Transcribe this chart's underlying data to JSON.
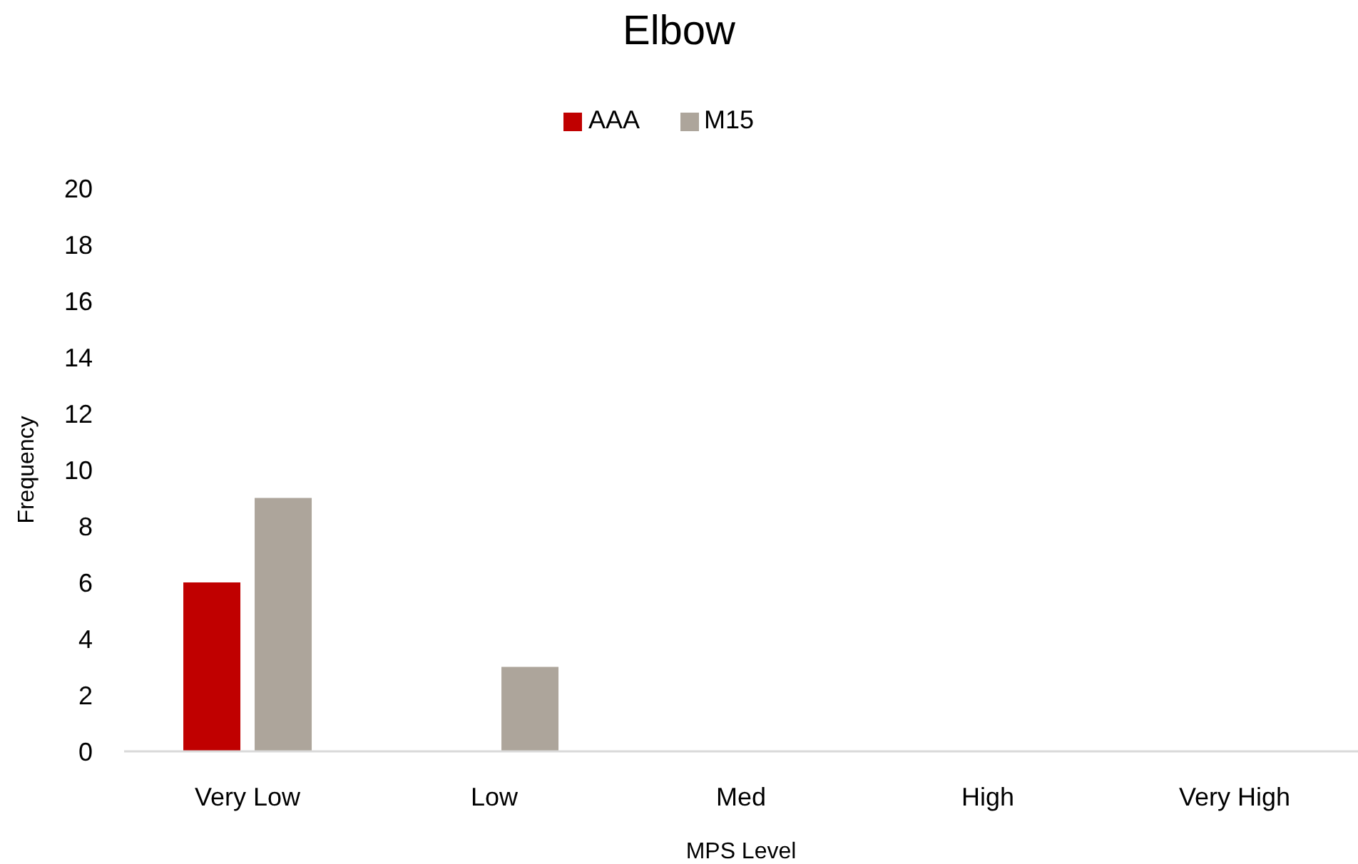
{
  "chart_data": {
    "type": "bar",
    "title": "Elbow",
    "xlabel": "MPS Level",
    "ylabel": "Frequency",
    "categories": [
      "Very Low",
      "Low",
      "Med",
      "High",
      "Very High"
    ],
    "series": [
      {
        "name": "AAA",
        "color": "#c00000",
        "values": [
          6,
          0,
          0,
          0,
          0
        ]
      },
      {
        "name": "M15",
        "color": "#ada59b",
        "values": [
          9,
          3,
          0,
          0,
          0
        ]
      }
    ],
    "ylim": [
      0,
      20
    ],
    "yticks": [
      0,
      2,
      4,
      6,
      8,
      10,
      12,
      14,
      16,
      18,
      20
    ],
    "legend": "top"
  }
}
